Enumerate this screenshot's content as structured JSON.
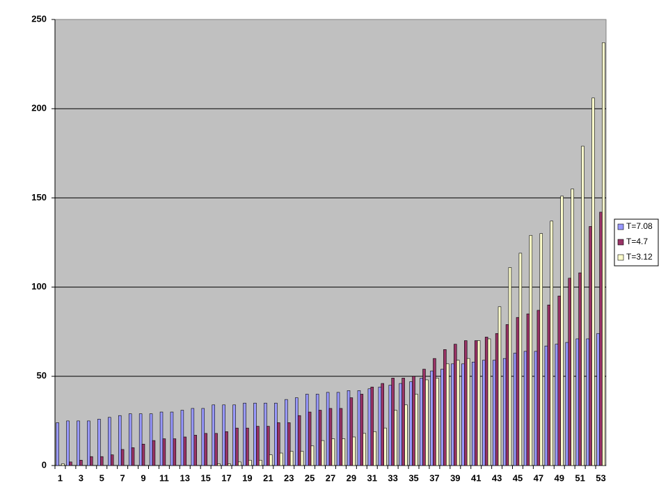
{
  "chart_data": {
    "type": "bar",
    "grid": true,
    "legend": "right",
    "categories": [
      "1",
      null,
      "3",
      null,
      "5",
      null,
      "7",
      null,
      "9",
      null,
      "11",
      null,
      "13",
      null,
      "15",
      null,
      "17",
      null,
      "19",
      null,
      "21",
      null,
      "23",
      null,
      "25",
      null,
      "27",
      null,
      "29",
      null,
      "31",
      null,
      "33",
      null,
      "35",
      null,
      "37",
      null,
      "39",
      null,
      "41",
      null,
      "43",
      null,
      "45",
      null,
      "47",
      null,
      "49",
      null,
      "51",
      null,
      "53"
    ],
    "series": [
      {
        "name": "T=7.08",
        "color": "#9999ff",
        "values": [
          24,
          25,
          25,
          25,
          26,
          27,
          28,
          29,
          29,
          29,
          30,
          30,
          31,
          32,
          32,
          34,
          34,
          34,
          35,
          35,
          35,
          35,
          37,
          38,
          40,
          40,
          41,
          41,
          42,
          42,
          43,
          44,
          45,
          46,
          47,
          49,
          53,
          54,
          57,
          57,
          58,
          59,
          59,
          60,
          63,
          64,
          64,
          67,
          68,
          69,
          71,
          71,
          74
        ]
      },
      {
        "name": "T=4.7",
        "color": "#993366",
        "values": [
          0,
          2,
          3,
          5,
          5,
          6,
          9,
          10,
          12,
          14,
          15,
          15,
          16,
          17,
          18,
          18,
          19,
          21,
          21,
          22,
          22,
          24,
          24,
          28,
          30,
          31,
          32,
          32,
          38,
          40,
          44,
          46,
          49,
          49,
          50,
          54,
          60,
          65,
          68,
          70,
          70,
          72,
          74,
          79,
          83,
          85,
          87,
          90,
          95,
          105,
          108,
          134,
          142
        ]
      },
      {
        "name": "T=3.12",
        "color": "#ffffcc",
        "values": [
          1,
          0,
          0,
          0,
          0,
          0,
          0,
          0,
          0,
          0,
          0,
          0,
          0,
          0,
          0,
          1,
          1,
          2,
          3,
          3,
          6,
          7,
          8,
          8,
          11,
          14,
          15,
          15,
          16,
          18,
          19,
          21,
          31,
          34,
          40,
          48,
          49,
          57,
          59,
          60,
          70,
          71,
          89,
          111,
          119,
          129,
          130,
          137,
          151,
          155,
          179,
          206,
          237
        ]
      }
    ],
    "ylim": [
      0,
      250
    ],
    "yticks": [
      0,
      50,
      100,
      150,
      200,
      250
    ]
  }
}
